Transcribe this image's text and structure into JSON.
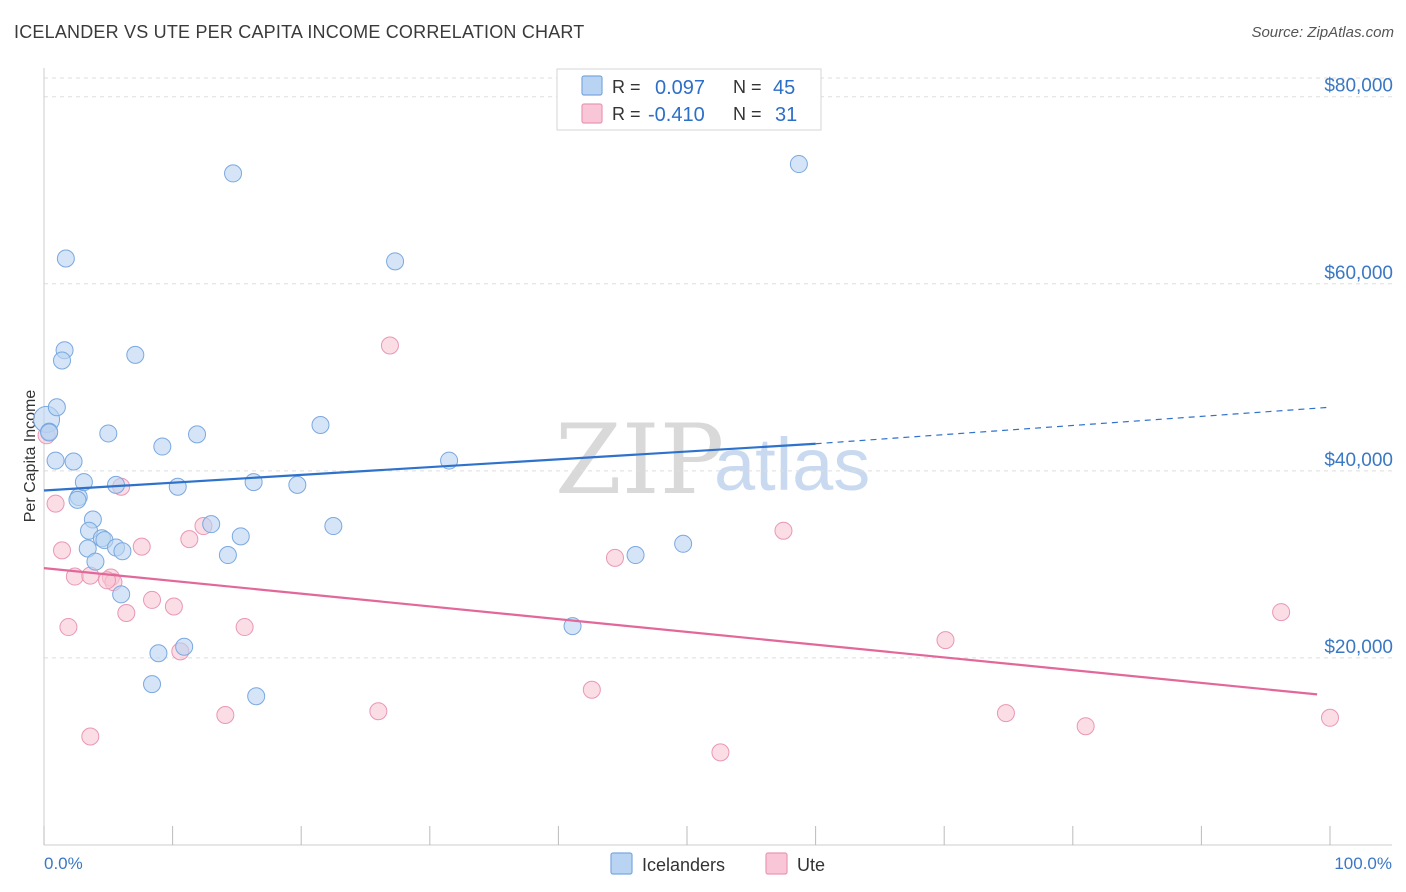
{
  "title": "ICELANDER VS UTE PER CAPITA INCOME CORRELATION CHART",
  "source": "Source: ZipAtlas.com",
  "watermark": {
    "zip": "ZIP",
    "atlas": "atlas"
  },
  "legend_box": {
    "rows": [
      {
        "r_label": "R =",
        "r_value": "0.097",
        "n_label": "N =",
        "n_value": "45"
      },
      {
        "r_label": "R =",
        "r_value": "-0.410",
        "n_label": "N =",
        "n_value": "31"
      }
    ]
  },
  "bottom_legend": [
    "Icelanders",
    "Ute"
  ],
  "colors": {
    "icelanders_fill": "#b9d3f2",
    "icelanders_stroke": "#7aa8e0",
    "icelanders_line": "#2f72cc",
    "ute_fill": "#f8c6d6",
    "ute_stroke": "#ea97b4",
    "ute_line": "#e2689a",
    "axis_text": "#3b78c4",
    "grid": "#dddddd"
  },
  "chart_data": {
    "type": "scatter",
    "title": "ICELANDER VS UTE PER CAPITA INCOME CORRELATION CHART",
    "xlabel": "",
    "ylabel": "Per Capita Income",
    "xlim": [
      0,
      100
    ],
    "ylim": [
      0,
      80000
    ],
    "x_tick_labels": [
      "0.0%",
      "100.0%"
    ],
    "y_ticks": [
      20000,
      40000,
      60000,
      80000
    ],
    "y_tick_labels": [
      "$20,000",
      "$40,000",
      "$60,000",
      "$80,000"
    ],
    "grid": true,
    "legend_position": "top-center",
    "series": [
      {
        "name": "Icelanders",
        "r": 0.097,
        "n": 45,
        "trend": {
          "x0": 0,
          "y0": 37900,
          "x1": 60,
          "y1": 42900,
          "dash_to_x": 100,
          "dash_to_y": 46800
        },
        "points": [
          [
            0.2,
            45500
          ],
          [
            0.4,
            44200
          ],
          [
            1.0,
            46800
          ],
          [
            0.9,
            41100
          ],
          [
            1.7,
            62700
          ],
          [
            1.6,
            52900
          ],
          [
            1.4,
            51800
          ],
          [
            2.3,
            41000
          ],
          [
            2.7,
            37200
          ],
          [
            3.1,
            38800
          ],
          [
            2.6,
            36900
          ],
          [
            3.8,
            34800
          ],
          [
            3.5,
            33600
          ],
          [
            4.5,
            32800
          ],
          [
            4.7,
            32600
          ],
          [
            5.6,
            31800
          ],
          [
            3.4,
            31700
          ],
          [
            6.1,
            31400
          ],
          [
            4.0,
            30300
          ],
          [
            5.0,
            44000
          ],
          [
            5.6,
            38500
          ],
          [
            7.1,
            52400
          ],
          [
            9.2,
            42600
          ],
          [
            10.4,
            38300
          ],
          [
            11.9,
            43900
          ],
          [
            13.0,
            34300
          ],
          [
            14.3,
            31000
          ],
          [
            15.3,
            33000
          ],
          [
            16.3,
            38800
          ],
          [
            19.7,
            38500
          ],
          [
            21.5,
            44900
          ],
          [
            22.5,
            34100
          ],
          [
            14.7,
            71800
          ],
          [
            27.3,
            62400
          ],
          [
            31.5,
            41100
          ],
          [
            6.0,
            26800
          ],
          [
            8.9,
            20500
          ],
          [
            10.9,
            21200
          ],
          [
            8.4,
            17200
          ],
          [
            16.5,
            15900
          ],
          [
            41.1,
            23400
          ],
          [
            46.0,
            31000
          ],
          [
            49.7,
            32200
          ],
          [
            58.7,
            72800
          ],
          [
            0.4,
            44100
          ]
        ]
      },
      {
        "name": "Ute",
        "r": -0.41,
        "n": 31,
        "trend": {
          "x0": 0,
          "y0": 29600,
          "x1": 99,
          "y1": 16100
        },
        "points": [
          [
            0.2,
            43800
          ],
          [
            0.9,
            36500
          ],
          [
            1.4,
            31500
          ],
          [
            2.4,
            28700
          ],
          [
            1.9,
            23300
          ],
          [
            3.6,
            28800
          ],
          [
            5.2,
            28600
          ],
          [
            5.4,
            28100
          ],
          [
            4.9,
            28300
          ],
          [
            6.0,
            38300
          ],
          [
            6.4,
            24800
          ],
          [
            7.6,
            31900
          ],
          [
            8.4,
            26200
          ],
          [
            10.1,
            25500
          ],
          [
            11.3,
            32700
          ],
          [
            12.4,
            34100
          ],
          [
            10.6,
            20700
          ],
          [
            15.6,
            23300
          ],
          [
            14.1,
            13900
          ],
          [
            26.0,
            14300
          ],
          [
            26.9,
            53400
          ],
          [
            44.4,
            30700
          ],
          [
            42.6,
            16600
          ],
          [
            52.6,
            9900
          ],
          [
            57.5,
            33600
          ],
          [
            70.1,
            21900
          ],
          [
            74.8,
            14100
          ],
          [
            81.0,
            12700
          ],
          [
            96.2,
            24900
          ],
          [
            100.0,
            13600
          ],
          [
            3.6,
            11600
          ]
        ]
      }
    ]
  }
}
